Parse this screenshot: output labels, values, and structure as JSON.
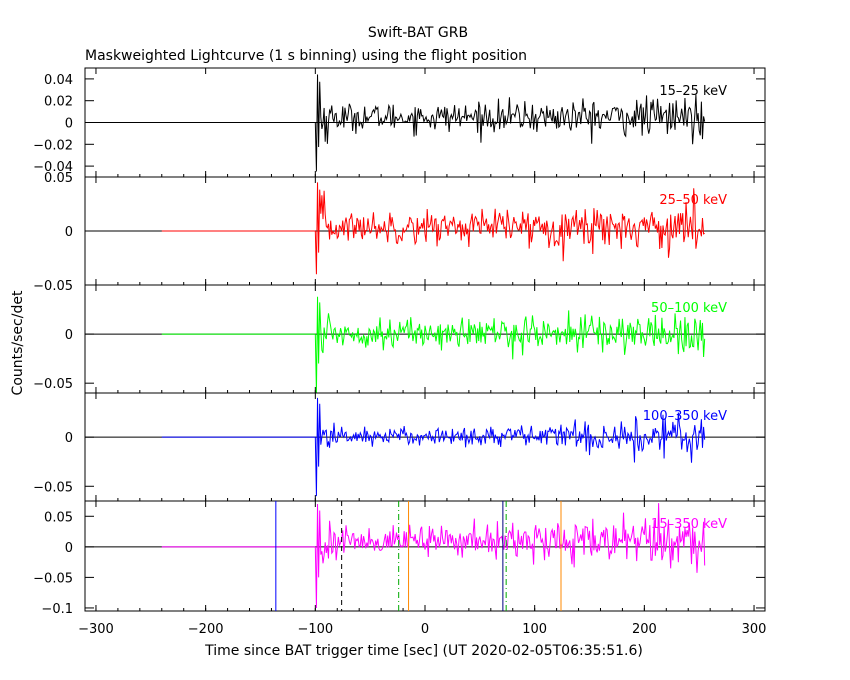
{
  "chart_data": {
    "type": "line",
    "title": "Swift-BAT GRB",
    "subtitle": "Maskweighted Lightcurve (1 s binning) using the flight position",
    "xlabel": "Time since BAT trigger time [sec] (UT 2020-02-05T06:35:51.6)",
    "ylabel": "Counts/sec/det",
    "xlim": [
      -310,
      310
    ],
    "x_ticks": [
      -300,
      -200,
      -100,
      0,
      100,
      200,
      300
    ],
    "x_tick_labels": [
      "−300",
      "−200",
      "−100",
      "0",
      "100",
      "200",
      "300"
    ],
    "data_range": [
      -240,
      255
    ],
    "trigger_start": -100,
    "panels": [
      {
        "band": "15–25 keV",
        "color": "#000000",
        "ylim": [
          -0.05,
          0.05
        ],
        "y_ticks": [
          -0.04,
          -0.02,
          0,
          0.02,
          0.04
        ],
        "y_tick_labels": [
          "−0.04",
          "−0.02",
          "0",
          "0.02",
          "0.04"
        ],
        "signal_level": 0.005,
        "noise_sigma": 0.006,
        "noise_growth": 0.004,
        "spike_max": 0.044,
        "spike_min": -0.045
      },
      {
        "band": "25–50 keV",
        "color": "#ff0000",
        "ylim": [
          -0.05,
          0.05
        ],
        "y_ticks": [
          -0.05,
          0,
          0.05
        ],
        "y_tick_labels": [
          "−0.05",
          "0",
          "0.05"
        ],
        "signal_level": 0.004,
        "noise_sigma": 0.007,
        "noise_growth": 0.005,
        "spike_max": 0.045,
        "spike_min": -0.04
      },
      {
        "band": "50–100 keV",
        "color": "#00ff00",
        "ylim": [
          -0.06,
          0.05
        ],
        "y_ticks": [
          -0.05,
          0
        ],
        "y_tick_labels": [
          "−0.05",
          "0"
        ],
        "signal_level": 0.001,
        "noise_sigma": 0.007,
        "noise_growth": 0.005,
        "spike_max": 0.038,
        "spike_min": -0.06
      },
      {
        "band": "100–350 keV",
        "color": "#0000ff",
        "ylim": [
          -0.065,
          0.045
        ],
        "y_ticks": [
          -0.05,
          0
        ],
        "y_tick_labels": [
          "−0.05",
          "0"
        ],
        "signal_level": 0.001,
        "noise_sigma": 0.004,
        "noise_growth": 0.008,
        "spike_max": 0.04,
        "spike_min": -0.06
      },
      {
        "band": "15–350 keV",
        "color": "#ff00ff",
        "ylim": [
          -0.105,
          0.075
        ],
        "y_ticks": [
          -0.1,
          -0.05,
          0,
          0.05
        ],
        "y_tick_labels": [
          "−0.1",
          "−0.05",
          "0",
          "0.05"
        ],
        "signal_level": 0.01,
        "noise_sigma": 0.012,
        "noise_growth": 0.008,
        "spike_max": 0.07,
        "spike_min": -0.1
      }
    ],
    "markers": [
      {
        "x": -136,
        "color": "#0000ff",
        "style": "solid"
      },
      {
        "x": -76,
        "color": "#000000",
        "style": "dashed"
      },
      {
        "x": -24,
        "color": "#00aa00",
        "style": "dashdot"
      },
      {
        "x": -15,
        "color": "#ff8800",
        "style": "solid"
      },
      {
        "x": 71,
        "color": "#000080",
        "style": "solid"
      },
      {
        "x": 74,
        "color": "#00aa00",
        "style": "dashdot"
      },
      {
        "x": 124,
        "color": "#ff8800",
        "style": "solid"
      }
    ],
    "grid": false,
    "legend": "none"
  }
}
